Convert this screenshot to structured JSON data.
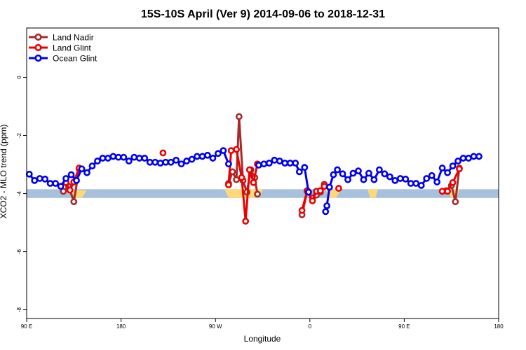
{
  "chart_data": {
    "type": "line",
    "title": "15S-10S April (Ver 9)   2014-09-06 to 2018-12-31",
    "xlabel": "Longitude",
    "ylabel": "XCO2 - MLO trend (ppm)",
    "xlim": [
      90,
      270
    ],
    "ylim": [
      -8.3,
      1.7
    ],
    "x_ticks": [
      {
        "value": 90,
        "label": "90 E"
      },
      {
        "value": 126,
        "label": "180"
      },
      {
        "value": 162,
        "label": "90 W"
      },
      {
        "value": 198,
        "label": "0"
      },
      {
        "value": 234,
        "label": "90 E"
      },
      {
        "value": 270,
        "label": "180"
      }
    ],
    "y_ticks": [
      {
        "value": 0,
        "label": "0"
      },
      {
        "value": -2,
        "label": "-2"
      },
      {
        "value": -4,
        "label": "-4"
      },
      {
        "value": -6,
        "label": "-6"
      },
      {
        "value": -8,
        "label": "-8"
      }
    ],
    "legend_position": "top-left",
    "grid": false,
    "background_band": {
      "y_from": -4.15,
      "y_to": -3.85,
      "color": "#a7c0dc"
    },
    "land_mask": {
      "color": "#fdd87a",
      "regions": [
        [
          {
            "x": 106,
            "y": -3.85
          },
          {
            "x": 109,
            "y": -4.15
          },
          {
            "x": 111,
            "y": -4.15
          },
          {
            "x": 113,
            "y": -3.9
          }
        ],
        [
          {
            "x": 165.5,
            "y": -3.85
          },
          {
            "x": 167,
            "y": -4.15
          },
          {
            "x": 179,
            "y": -4.15
          },
          {
            "x": 180,
            "y": -3.85
          }
        ],
        [
          {
            "x": 204,
            "y": -3.85
          },
          {
            "x": 205,
            "y": -4.15
          },
          {
            "x": 208,
            "y": -4.15
          },
          {
            "x": 210,
            "y": -3.85
          }
        ],
        [
          {
            "x": 220,
            "y": -3.85
          },
          {
            "x": 221,
            "y": -4.15
          },
          {
            "x": 223,
            "y": -4.15
          },
          {
            "x": 224,
            "y": -3.85
          }
        ],
        [
          {
            "x": 250,
            "y": -3.85
          },
          {
            "x": 252,
            "y": -4.15
          },
          {
            "x": 254,
            "y": -4.15
          },
          {
            "x": 255,
            "y": -3.85
          }
        ]
      ]
    },
    "series": [
      {
        "name": "Land Nadir",
        "color": "#a52a2a",
        "segments": [
          [
            {
              "x": 104,
              "y": -3.92
            },
            {
              "x": 106,
              "y": -3.75
            },
            {
              "x": 108,
              "y": -4.28
            },
            {
              "x": 110,
              "y": -3.15
            }
          ],
          [
            {
              "x": 167,
              "y": -3.65
            },
            {
              "x": 168.5,
              "y": -3.25
            },
            {
              "x": 170,
              "y": -3.52
            },
            {
              "x": 171,
              "y": -1.35
            },
            {
              "x": 172.5,
              "y": -3.55
            },
            {
              "x": 174,
              "y": -3.95
            },
            {
              "x": 175.5,
              "y": -3.18
            },
            {
              "x": 177,
              "y": -3.45
            },
            {
              "x": 178,
              "y": -4.02
            }
          ],
          [
            {
              "x": 195,
              "y": -4.73
            },
            {
              "x": 197,
              "y": -3.92
            },
            {
              "x": 199,
              "y": -4.15
            },
            {
              "x": 200.5,
              "y": -4.05
            },
            {
              "x": 202,
              "y": -3.95
            },
            {
              "x": 203.5,
              "y": -3.68
            }
          ],
          [
            {
              "x": 250,
              "y": -3.9
            },
            {
              "x": 252,
              "y": -3.72
            },
            {
              "x": 253.5,
              "y": -4.28
            },
            {
              "x": 255,
              "y": -3.12
            }
          ]
        ]
      },
      {
        "name": "Land Glint",
        "color": "#ee0000",
        "segments": [
          [
            {
              "x": 105,
              "y": -3.62
            },
            {
              "x": 106.5,
              "y": -3.88
            },
            {
              "x": 108,
              "y": -3.6
            },
            {
              "x": 110,
              "y": -3.12
            }
          ],
          [
            {
              "x": 142,
              "y": -2.6
            }
          ],
          [
            {
              "x": 167,
              "y": -3.7
            },
            {
              "x": 168,
              "y": -2.52
            },
            {
              "x": 170,
              "y": -2.48
            },
            {
              "x": 172,
              "y": -3.45
            },
            {
              "x": 173.5,
              "y": -4.95
            },
            {
              "x": 175,
              "y": -3.18
            },
            {
              "x": 176.5,
              "y": -3.62
            },
            {
              "x": 178,
              "y": -2.98
            }
          ],
          [
            {
              "x": 195,
              "y": -4.58
            },
            {
              "x": 197,
              "y": -3.9
            },
            {
              "x": 199,
              "y": -4.25
            },
            {
              "x": 200.5,
              "y": -3.92
            },
            {
              "x": 202,
              "y": -3.9
            },
            {
              "x": 203.5,
              "y": -3.75
            }
          ],
          [
            {
              "x": 209,
              "y": -3.82
            }
          ],
          [
            {
              "x": 248.5,
              "y": -3.92
            },
            {
              "x": 250.5,
              "y": -3.92
            },
            {
              "x": 252.5,
              "y": -3.62
            },
            {
              "x": 255,
              "y": -3.15
            }
          ]
        ]
      },
      {
        "name": "Ocean Glint",
        "color": "#0000ee",
        "segments": [
          [
            {
              "x": 91,
              "y": -3.33
            },
            {
              "x": 93,
              "y": -3.55
            },
            {
              "x": 95,
              "y": -3.48
            },
            {
              "x": 97,
              "y": -3.5
            },
            {
              "x": 99,
              "y": -3.65
            },
            {
              "x": 101,
              "y": -3.65
            },
            {
              "x": 103,
              "y": -3.75
            },
            {
              "x": 105,
              "y": -3.48
            },
            {
              "x": 107,
              "y": -3.35
            },
            {
              "x": 109,
              "y": -3.55
            },
            {
              "x": 111,
              "y": -3.15
            },
            {
              "x": 113,
              "y": -3.28
            },
            {
              "x": 115,
              "y": -3.05
            },
            {
              "x": 117,
              "y": -2.88
            },
            {
              "x": 119,
              "y": -2.78
            },
            {
              "x": 121,
              "y": -2.78
            },
            {
              "x": 123,
              "y": -2.72
            },
            {
              "x": 125,
              "y": -2.75
            },
            {
              "x": 127,
              "y": -2.75
            },
            {
              "x": 129,
              "y": -2.88
            },
            {
              "x": 131,
              "y": -2.75
            },
            {
              "x": 133,
              "y": -2.78
            },
            {
              "x": 135,
              "y": -2.78
            },
            {
              "x": 137,
              "y": -2.92
            },
            {
              "x": 139,
              "y": -2.92
            },
            {
              "x": 141,
              "y": -2.95
            },
            {
              "x": 143,
              "y": -2.92
            },
            {
              "x": 145,
              "y": -2.92
            },
            {
              "x": 147,
              "y": -2.85
            },
            {
              "x": 149,
              "y": -2.98
            },
            {
              "x": 151,
              "y": -2.88
            },
            {
              "x": 153,
              "y": -2.82
            },
            {
              "x": 155,
              "y": -2.72
            },
            {
              "x": 157,
              "y": -2.72
            },
            {
              "x": 159,
              "y": -2.68
            },
            {
              "x": 161,
              "y": -2.78
            },
            {
              "x": 163,
              "y": -2.62
            },
            {
              "x": 165,
              "y": -2.52
            },
            {
              "x": 167,
              "y": -2.98
            }
          ],
          [
            {
              "x": 178.5,
              "y": -3.02
            },
            {
              "x": 180.5,
              "y": -2.98
            },
            {
              "x": 182.5,
              "y": -2.95
            },
            {
              "x": 184.5,
              "y": -2.85
            },
            {
              "x": 186.5,
              "y": -2.88
            },
            {
              "x": 188.5,
              "y": -2.95
            },
            {
              "x": 190.5,
              "y": -2.95
            },
            {
              "x": 192.5,
              "y": -2.95
            },
            {
              "x": 194,
              "y": -3.25
            },
            {
              "x": 196,
              "y": -3.1
            },
            {
              "x": 197.5,
              "y": -3.95
            }
          ],
          [
            {
              "x": 204,
              "y": -4.62
            },
            {
              "x": 204.5,
              "y": -4.42
            },
            {
              "x": 205.5,
              "y": -3.78
            },
            {
              "x": 207,
              "y": -3.35
            },
            {
              "x": 208.5,
              "y": -3.18
            },
            {
              "x": 210.5,
              "y": -3.32
            },
            {
              "x": 212.5,
              "y": -3.52
            },
            {
              "x": 214.5,
              "y": -3.3
            },
            {
              "x": 216.5,
              "y": -3.22
            },
            {
              "x": 218.5,
              "y": -3.52
            },
            {
              "x": 220.5,
              "y": -3.3
            },
            {
              "x": 222.5,
              "y": -3.52
            },
            {
              "x": 224.5,
              "y": -3.18
            },
            {
              "x": 226.5,
              "y": -3.32
            },
            {
              "x": 228.5,
              "y": -3.42
            },
            {
              "x": 230.5,
              "y": -3.55
            },
            {
              "x": 232.5,
              "y": -3.48
            },
            {
              "x": 234.5,
              "y": -3.5
            },
            {
              "x": 236.5,
              "y": -3.65
            },
            {
              "x": 238.5,
              "y": -3.65
            },
            {
              "x": 240.5,
              "y": -3.72
            },
            {
              "x": 242.5,
              "y": -3.48
            },
            {
              "x": 244.5,
              "y": -3.38
            },
            {
              "x": 246.5,
              "y": -3.6
            },
            {
              "x": 248.5,
              "y": -3.12
            },
            {
              "x": 250.5,
              "y": -3.28
            },
            {
              "x": 252.5,
              "y": -3.05
            },
            {
              "x": 254.5,
              "y": -2.88
            },
            {
              "x": 256.5,
              "y": -2.78
            },
            {
              "x": 258.5,
              "y": -2.78
            },
            {
              "x": 260.5,
              "y": -2.72
            },
            {
              "x": 262.5,
              "y": -2.72
            }
          ]
        ]
      }
    ]
  }
}
